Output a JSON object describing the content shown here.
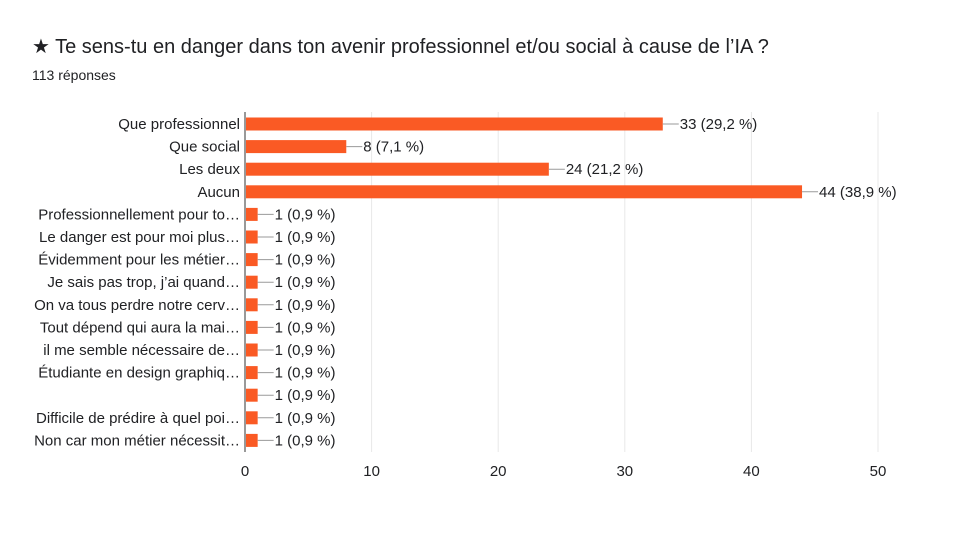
{
  "header": {
    "title": "★ Te sens-tu en danger dans ton avenir professionnel et/ou social à cause de l’IA ?",
    "responses": "113 réponses"
  },
  "colors": {
    "bar": "#fa5a24",
    "grid": "#e8e8e8",
    "axis": "#333333",
    "text": "#202124"
  },
  "chart_data": {
    "type": "bar",
    "orientation": "horizontal",
    "categories": [
      "Que professionnel",
      "Que social",
      "Les deux",
      "Aucun",
      "Professionnellement pour to…",
      "Le danger est pour moi plus…",
      "Évidemment pour les métier…",
      "Je sais pas trop, j’ai quand…",
      "On va tous perdre notre cerv…",
      "Tout dépend qui aura la mai…",
      "il me semble nécessaire de…",
      "Étudiante en design graphiq…",
      "",
      "Difficile de prédire à quel poi…",
      "Non car mon métier nécessit…"
    ],
    "values": [
      33,
      8,
      24,
      44,
      1,
      1,
      1,
      1,
      1,
      1,
      1,
      1,
      1,
      1,
      1
    ],
    "data_labels": [
      "33 (29,2 %)",
      "8 (7,1 %)",
      "24 (21,2 %)",
      "44 (38,9 %)",
      "1 (0,9 %)",
      "1 (0,9 %)",
      "1 (0,9 %)",
      "1 (0,9 %)",
      "1 (0,9 %)",
      "1 (0,9 %)",
      "1 (0,9 %)",
      "1 (0,9 %)",
      "1 (0,9 %)",
      "1 (0,9 %)",
      "1 (0,9 %)"
    ],
    "xlim": [
      0,
      50
    ],
    "xticks": [
      0,
      10,
      20,
      30,
      40,
      50
    ],
    "xlabel": "",
    "ylabel": "",
    "grid": true,
    "legend": "none"
  }
}
